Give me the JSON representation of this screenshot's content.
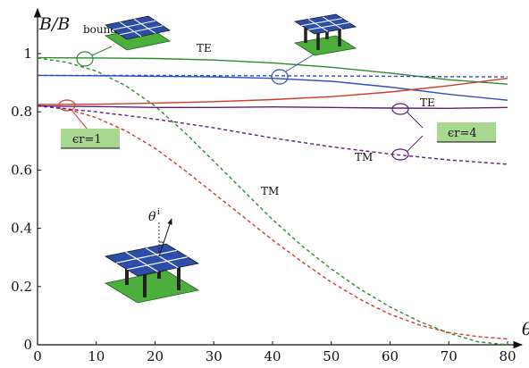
{
  "chart_data": {
    "type": "line",
    "xlabel": "θ",
    "ylabel": "B/B",
    "ylabel_sub": "bound",
    "xlim": [
      0,
      80
    ],
    "ylim": [
      0,
      1
    ],
    "x_ticks": [
      0,
      10,
      20,
      30,
      40,
      50,
      60,
      70,
      80
    ],
    "y_ticks": [
      0,
      0.2,
      0.4,
      0.6,
      0.8,
      1
    ],
    "x_tick_labels": [
      "0",
      "10",
      "20",
      "30",
      "40",
      "50",
      "60",
      "70",
      "80"
    ],
    "y_tick_labels": [
      "0",
      "0.2",
      "0.4",
      "0.6",
      "0.8",
      "1"
    ],
    "grid": false,
    "colors": {
      "green": "#2e8b2e",
      "blue": "#2f4fbf",
      "red": "#d23a2a",
      "purple": "#5c1f7a",
      "eps_box": "#a8d890"
    },
    "series": [
      {
        "key": "g_te",
        "color": "#2e8b2e",
        "dash": false,
        "x": [
          0,
          10,
          20,
          30,
          40,
          50,
          60,
          70,
          80
        ],
        "y": [
          0.986,
          0.985,
          0.983,
          0.978,
          0.968,
          0.953,
          0.933,
          0.91,
          0.895
        ]
      },
      {
        "key": "g_tm",
        "color": "#2e8b2e",
        "dash": true,
        "x": [
          0,
          5,
          10,
          15,
          20,
          25,
          30,
          35,
          40,
          45,
          50,
          55,
          60,
          65,
          70,
          75,
          80
        ],
        "y": [
          0.985,
          0.97,
          0.94,
          0.89,
          0.82,
          0.73,
          0.63,
          0.53,
          0.43,
          0.34,
          0.26,
          0.19,
          0.13,
          0.08,
          0.04,
          0.01,
          0.0
        ]
      },
      {
        "key": "b_te",
        "color": "#2f4fbf",
        "dash": false,
        "x": [
          0,
          10,
          20,
          30,
          40,
          50,
          60,
          70,
          80
        ],
        "y": [
          0.925,
          0.924,
          0.922,
          0.92,
          0.915,
          0.905,
          0.885,
          0.86,
          0.84
        ]
      },
      {
        "key": "b_tm",
        "color": "#2f4fbf",
        "dash": true,
        "x": [
          0,
          10,
          20,
          30,
          40,
          50,
          60,
          70,
          80
        ],
        "y": [
          0.925,
          0.925,
          0.925,
          0.924,
          0.924,
          0.923,
          0.922,
          0.921,
          0.92
        ]
      },
      {
        "key": "r_te",
        "color": "#d23a2a",
        "dash": false,
        "x": [
          0,
          10,
          20,
          30,
          40,
          50,
          60,
          70,
          80
        ],
        "y": [
          0.825,
          0.826,
          0.83,
          0.835,
          0.842,
          0.852,
          0.868,
          0.89,
          0.915
        ]
      },
      {
        "key": "r_tm",
        "color": "#d23a2a",
        "dash": true,
        "x": [
          0,
          5,
          10,
          15,
          20,
          25,
          30,
          35,
          40,
          45,
          50,
          55,
          60,
          65,
          70,
          75,
          80
        ],
        "y": [
          0.823,
          0.81,
          0.78,
          0.735,
          0.675,
          0.6,
          0.52,
          0.44,
          0.36,
          0.285,
          0.215,
          0.155,
          0.105,
          0.068,
          0.042,
          0.028,
          0.02
        ]
      },
      {
        "key": "p_te",
        "color": "#5c1f7a",
        "dash": false,
        "x": [
          0,
          10,
          20,
          30,
          40,
          50,
          60,
          70,
          80
        ],
        "y": [
          0.82,
          0.818,
          0.815,
          0.815,
          0.817,
          0.815,
          0.813,
          0.812,
          0.815
        ]
      },
      {
        "key": "p_tm",
        "color": "#5c1f7a",
        "dash": true,
        "x": [
          0,
          10,
          20,
          30,
          40,
          50,
          60,
          70,
          80
        ],
        "y": [
          0.82,
          0.8,
          0.775,
          0.745,
          0.71,
          0.68,
          0.655,
          0.635,
          0.62
        ]
      }
    ],
    "annotations": {
      "te_top": "TE",
      "te_right": "TE",
      "tm_mid": "TM",
      "tm_right": "TM",
      "eps1": "ϵr=1",
      "eps4": "ϵr=4"
    }
  }
}
